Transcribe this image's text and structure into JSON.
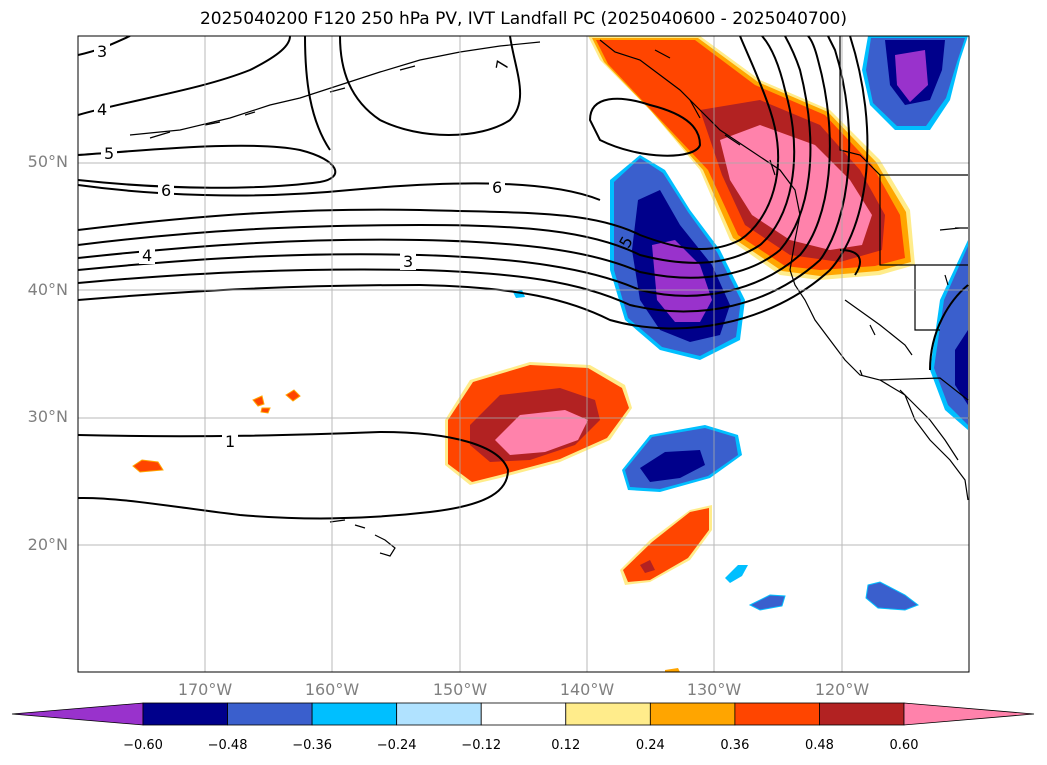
{
  "title": "2025040200 F120 250 hPa PV, IVT Landfall PC (2025040600 - 2025040700)",
  "lat_labels": [
    "50°N",
    "40°N",
    "30°N",
    "20°N"
  ],
  "lon_labels": [
    "170°W",
    "160°W",
    "150°W",
    "140°W",
    "130°W",
    "120°W"
  ],
  "colorbar": {
    "ticks": [
      "−0.60",
      "−0.48",
      "−0.36",
      "−0.24",
      "−0.12",
      "0.12",
      "0.24",
      "0.36",
      "0.48",
      "0.60"
    ],
    "colors": [
      "#9932cc",
      "#00008b",
      "#3a5fcd",
      "#00bfff",
      "#b0e2ff",
      "#ffffff",
      "#ffec8b",
      "#ffa500",
      "#ff4500",
      "#b22222",
      "#ff82ab"
    ]
  },
  "contour_labels": [
    {
      "text": "3"
    },
    {
      "text": "4"
    },
    {
      "text": "5"
    },
    {
      "text": "6"
    },
    {
      "text": "7"
    },
    {
      "text": "6"
    },
    {
      "text": "4"
    },
    {
      "text": "3"
    },
    {
      "text": "5"
    },
    {
      "text": "1"
    }
  ],
  "colors": {
    "pos_outer": "#ffa500",
    "pos_mid": "#ff4500",
    "pos_dark": "#b22222",
    "pos_core": "#ff82ab",
    "neg_outer": "#00bfff",
    "neg_mid": "#3a5fcd",
    "neg_dark": "#00008b",
    "neg_core": "#9932cc"
  }
}
